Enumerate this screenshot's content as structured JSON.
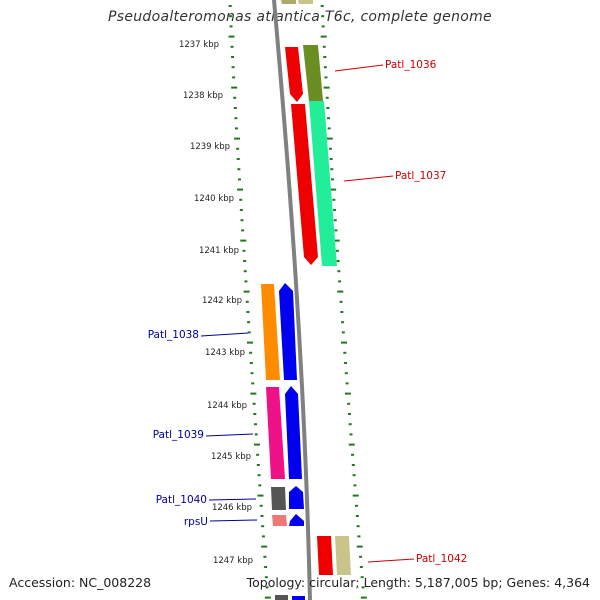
{
  "title": "Pseudoalteromonas atlantica T6c, complete genome",
  "footer": {
    "accession": "Accession: NC_008228",
    "summary": "Topology: circular; Length: 5,187,005 bp; Genes: 4,364"
  },
  "colors": {
    "background": "#ffffff",
    "backbone": "#808080",
    "ticks": "#1f7a1f",
    "kbp_label": "#222222",
    "label_right": "#cc0000",
    "label_left": "#000099"
  },
  "kbp_ticks": [
    {
      "label": "1237 kbp"
    },
    {
      "label": "1238 kbp"
    },
    {
      "label": "1239 kbp"
    },
    {
      "label": "1240 kbp"
    },
    {
      "label": "1241 kbp"
    },
    {
      "label": "1242 kbp"
    },
    {
      "label": "1243 kbp"
    },
    {
      "label": "1244 kbp"
    },
    {
      "label": "1245 kbp"
    },
    {
      "label": "1246 kbp"
    },
    {
      "label": "1247 kbp"
    }
  ],
  "gene_labels": [
    {
      "text": "Patl_1036",
      "side": "right"
    },
    {
      "text": "Patl_1037",
      "side": "right"
    },
    {
      "text": "Patl_1038",
      "side": "left"
    },
    {
      "text": "Patl_1039",
      "side": "left"
    },
    {
      "text": "Patl_1040",
      "side": "left"
    },
    {
      "text": "rpsU",
      "side": "left"
    },
    {
      "text": "Patl_1042",
      "side": "right"
    }
  ]
}
